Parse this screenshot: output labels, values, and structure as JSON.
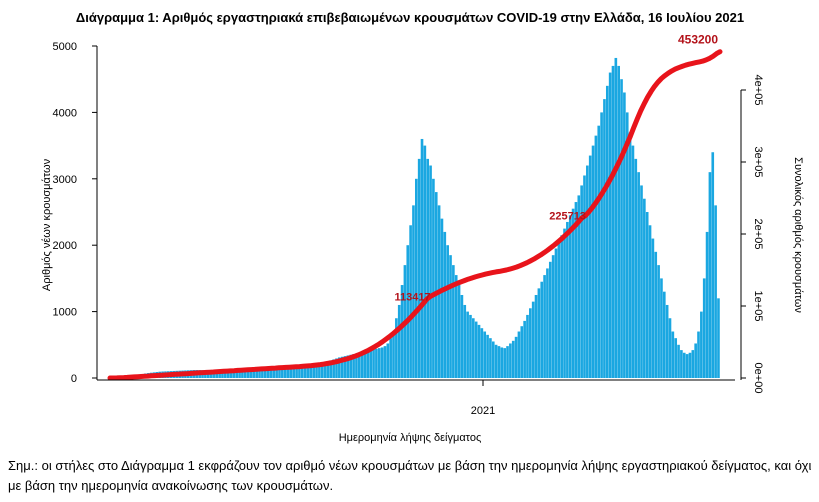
{
  "chart_data": {
    "type": "bar",
    "title": "Διάγραμμα 1: Αριθμός εργαστηριακά επιβεβαιωμένων κρουσμάτων COVID-19 στην Ελλάδα, 16 Ιουλίου 2021",
    "xlabel": "Ημερομηνία λήψης δείγματος",
    "ylabel": "Αριθμός νέων κρουσμάτων",
    "y2label": "Συνολικός αριθμός κρουσμάτων",
    "ylim": [
      0,
      5000
    ],
    "y2lim": [
      0,
      450000
    ],
    "yticks": [
      "0",
      "1000",
      "2000",
      "3000",
      "4000",
      "5000"
    ],
    "y2ticks": [
      "0e+00",
      "1e+05",
      "2e+05",
      "3e+05",
      "4e+05"
    ],
    "xticks": [
      "2021"
    ],
    "bar_color": "#1aa7e1",
    "line_color": "#e8141b",
    "annotations": [
      "113417",
      "225713",
      "453200"
    ],
    "series": [
      {
        "type": "bar",
        "values": [
          3,
          5,
          8,
          10,
          14,
          18,
          25,
          31,
          38,
          45,
          52,
          60,
          68,
          75,
          80,
          85,
          90,
          95,
          98,
          100,
          102,
          104,
          106,
          108,
          110,
          112,
          114,
          116,
          118,
          120,
          120,
          119,
          118,
          117,
          116,
          115,
          114,
          113,
          112,
          111,
          110,
          110,
          110,
          111,
          112,
          113,
          114,
          115,
          116,
          117,
          118,
          119,
          120,
          121,
          122,
          123,
          125,
          127,
          129,
          131,
          133,
          136,
          140,
          145,
          150,
          155,
          160,
          165,
          170,
          175,
          180,
          190,
          200,
          210,
          220,
          235,
          250,
          265,
          280,
          295,
          310,
          320,
          330,
          340,
          350,
          360,
          370,
          380,
          390,
          400,
          410,
          420,
          430,
          440,
          450,
          460,
          480,
          520,
          600,
          700,
          900,
          1100,
          1400,
          1700,
          2000,
          2300,
          2600,
          3000,
          3300,
          3600,
          3500,
          3300,
          3200,
          3000,
          2800,
          2600,
          2400,
          2200,
          2000,
          1850,
          1700,
          1550,
          1400,
          1250,
          1100,
          1000,
          950,
          900,
          850,
          800,
          750,
          700,
          650,
          600,
          550,
          500,
          480,
          460,
          450,
          480,
          520,
          560,
          620,
          700,
          780,
          860,
          950,
          1050,
          1150,
          1250,
          1350,
          1450,
          1550,
          1650,
          1750,
          1850,
          1950,
          2050,
          2150,
          2250,
          2350,
          2450,
          2550,
          2650,
          2750,
          2900,
          3050,
          3200,
          3350,
          3500,
          3650,
          3800,
          4000,
          4200,
          4400,
          4600,
          4700,
          4820,
          4700,
          4500,
          4300,
          4000,
          3700,
          3500,
          3300,
          3100,
          2900,
          2700,
          2500,
          2300,
          2100,
          1900,
          1700,
          1500,
          1300,
          1100,
          900,
          700,
          600,
          500,
          420,
          380,
          360,
          380,
          420,
          520,
          700,
          1000,
          1500,
          2200,
          3100,
          3400,
          2600,
          1200
        ],
        "note": "approximate daily new cases read from the chart shape, one bar per sampled interval"
      },
      {
        "type": "line",
        "values": [
          0,
          0,
          200,
          400,
          600,
          900,
          1200,
          1500,
          1800,
          2100,
          2400,
          2700,
          3000,
          3300,
          3600,
          3900,
          4200,
          4500,
          4800,
          5100,
          5400,
          5700,
          6000,
          6300,
          6600,
          6900,
          7200,
          7500,
          7800,
          8100,
          8400,
          8700,
          9000,
          9300,
          9600,
          9900,
          10200,
          10500,
          10800,
          11100,
          11400,
          11700,
          12000,
          12300,
          12600,
          12900,
          13200,
          13500,
          13800,
          14100,
          14400,
          14700,
          15000,
          15300,
          15600,
          15900,
          16200,
          16600,
          17000,
          17500,
          18000,
          18600,
          19300,
          20100,
          21000,
          22000,
          23100,
          24300,
          25600,
          27000,
          28500,
          30200,
          32000,
          34000,
          36200,
          38600,
          41200,
          44000,
          47000,
          50200,
          53600,
          57200,
          61000,
          65000,
          69200,
          73600,
          78200,
          83000,
          88000,
          93200,
          98600,
          104200,
          110000,
          113417,
          116000,
          118500,
          121000,
          123300,
          125600,
          127800,
          129900,
          131900,
          133800,
          135600,
          137300,
          138900,
          140400,
          141800,
          143100,
          144300,
          145400,
          146400,
          147300,
          148100,
          149000,
          150000,
          151200,
          152600,
          154200,
          156000,
          158000,
          160200,
          162600,
          165200,
          168000,
          171000,
          174200,
          177600,
          181200,
          185000,
          189000,
          193200,
          197600,
          202200,
          207000,
          212000,
          217200,
          222600,
          225713,
          231000,
          237000,
          243500,
          250500,
          258000,
          266000,
          274500,
          283500,
          293000,
          303000,
          313500,
          324500,
          336000,
          348000,
          360000,
          371000,
          381000,
          390000,
          398000,
          405000,
          411000,
          416000,
          420000,
          423500,
          426500,
          429000,
          431000,
          432800,
          434400,
          435800,
          437000,
          438000,
          439000,
          440200,
          441800,
          444000,
          447000,
          450500,
          453200
        ],
        "note": "approximate cumulative total cases (right axis), sampled"
      }
    ]
  },
  "note_text": "Σημ.: οι στήλες στο Διάγραμμα 1 εκφράζουν τον αριθμό νέων κρουσμάτων με βάση την ημερομηνία λήψης εργαστηριακού δείγματος, και όχι με βάση την ημερομηνία ανακοίνωσης των κρουσμάτων."
}
